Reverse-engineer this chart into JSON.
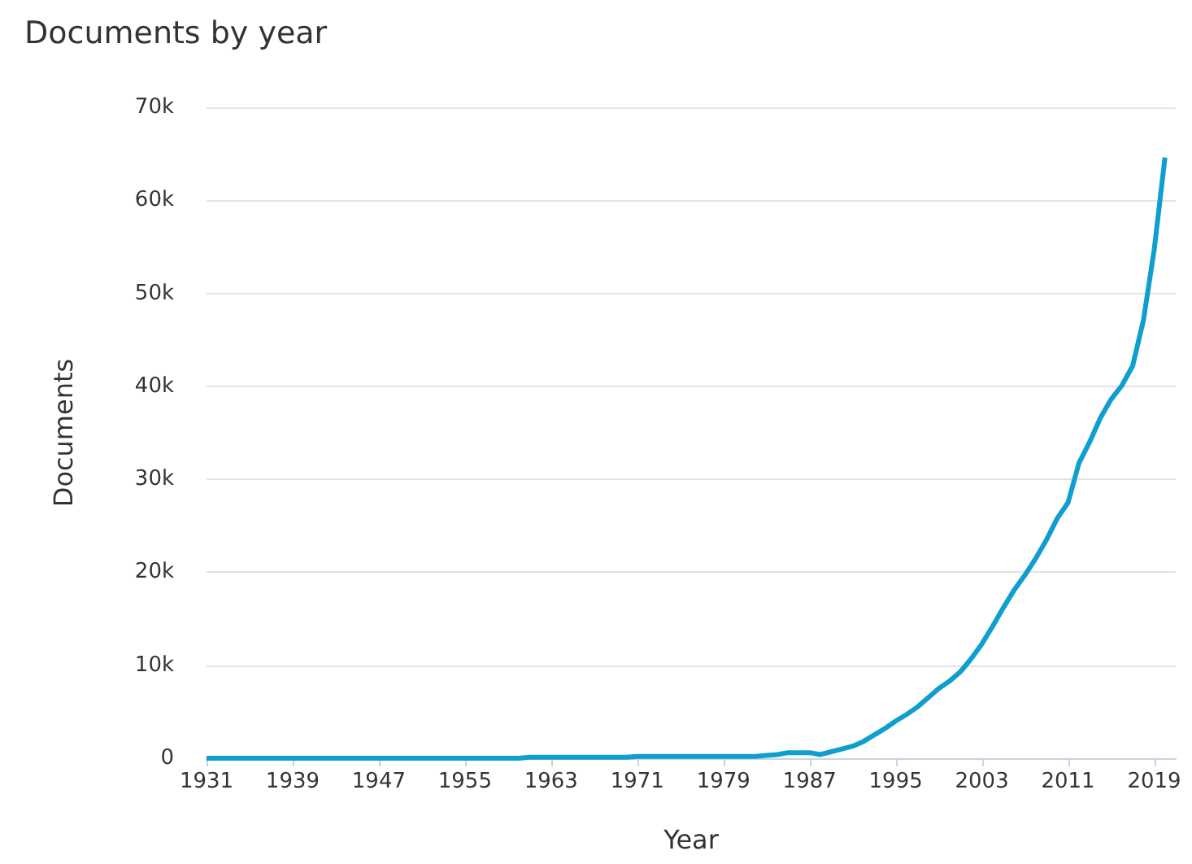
{
  "chart_data": {
    "type": "line",
    "title": "Documents by year",
    "xlabel": "Year",
    "ylabel": "Documents",
    "x": [
      1931,
      1932,
      1933,
      1934,
      1935,
      1936,
      1937,
      1938,
      1939,
      1940,
      1941,
      1942,
      1943,
      1944,
      1945,
      1946,
      1947,
      1948,
      1949,
      1950,
      1951,
      1952,
      1953,
      1954,
      1955,
      1956,
      1957,
      1958,
      1959,
      1960,
      1961,
      1962,
      1963,
      1964,
      1965,
      1966,
      1967,
      1968,
      1969,
      1970,
      1971,
      1972,
      1973,
      1974,
      1975,
      1976,
      1977,
      1978,
      1979,
      1980,
      1981,
      1982,
      1983,
      1984,
      1985,
      1986,
      1987,
      1988,
      1989,
      1990,
      1991,
      1992,
      1993,
      1994,
      1995,
      1996,
      1997,
      1998,
      1999,
      2000,
      2001,
      2002,
      2003,
      2004,
      2005,
      2006,
      2007,
      2008,
      2009,
      2010,
      2011,
      2012,
      2013,
      2014,
      2015,
      2016,
      2017,
      2018,
      2019,
      2020
    ],
    "series": [
      {
        "color": "#0e9fcf",
        "values": [
          0,
          0,
          0,
          0,
          0,
          0,
          0,
          0,
          0,
          0,
          0,
          0,
          0,
          0,
          0,
          0,
          0,
          0,
          0,
          0,
          0,
          0,
          0,
          0,
          0,
          0,
          0,
          0,
          0,
          0,
          100,
          100,
          100,
          100,
          100,
          100,
          100,
          100,
          100,
          100,
          200,
          200,
          200,
          200,
          200,
          200,
          200,
          200,
          200,
          200,
          200,
          200,
          300,
          400,
          600,
          600,
          600,
          400,
          700,
          1000,
          1300,
          1800,
          2500,
          3200,
          4000,
          4700,
          5500,
          6500,
          7500,
          8300,
          9300,
          10700,
          12300,
          14200,
          16200,
          18100,
          19700,
          21500,
          23500,
          25800,
          27500,
          31700,
          34000,
          36600,
          38600,
          40100,
          42200,
          47100,
          54700,
          64600
        ]
      }
    ],
    "xlim": [
      1931,
      2021
    ],
    "xticks": [
      1931,
      1939,
      1947,
      1955,
      1963,
      1971,
      1979,
      1987,
      1995,
      2003,
      2011,
      2019
    ],
    "ylim": [
      0,
      70000
    ],
    "yticks": [
      {
        "value": 0,
        "label": "0"
      },
      {
        "value": 10000,
        "label": "10k"
      },
      {
        "value": 20000,
        "label": "20k"
      },
      {
        "value": 30000,
        "label": "30k"
      },
      {
        "value": 40000,
        "label": "40k"
      },
      {
        "value": 50000,
        "label": "50k"
      },
      {
        "value": 60000,
        "label": "60k"
      },
      {
        "value": 70000,
        "label": "70k"
      }
    ],
    "grid": "y",
    "marker": "none",
    "line_style": "solid"
  }
}
